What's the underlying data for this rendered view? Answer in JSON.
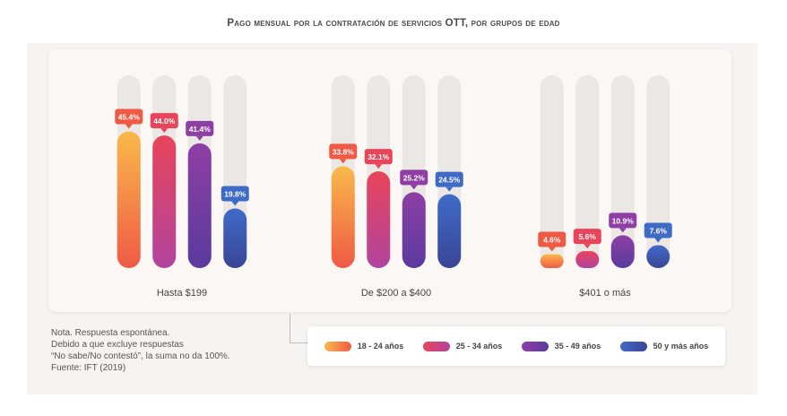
{
  "chart_data": {
    "type": "bar",
    "title": "Pago mensual por la contratación de servicios OTT, por grupos de edad",
    "categories": [
      "Hasta $199",
      "De $200 a $400",
      "$401 o más"
    ],
    "series": [
      {
        "name": "18 - 24 años",
        "values": [
          45.4,
          33.8,
          4.6
        ],
        "labels": [
          "45.4%",
          "33.8%",
          "4.6%"
        ],
        "color_top": "#f9b94a",
        "color_bottom": "#ef5a45"
      },
      {
        "name": "25 - 34 años",
        "values": [
          44.0,
          32.1,
          5.6
        ],
        "labels": [
          "44.0%",
          "32.1%",
          "5.6%"
        ],
        "color_top": "#e8445a",
        "color_bottom": "#b1449e"
      },
      {
        "name": "35 - 49 años",
        "values": [
          41.4,
          25.2,
          10.9
        ],
        "labels": [
          "41.4%",
          "25.2%",
          "10.9%"
        ],
        "color_top": "#8e3fa4",
        "color_bottom": "#5a3a9e"
      },
      {
        "name": "50 y más años",
        "values": [
          19.8,
          24.5,
          7.6
        ],
        "labels": [
          "19.8%",
          "24.5%",
          "7.6%"
        ],
        "color_top": "#3f6bc7",
        "color_bottom": "#3b4596"
      }
    ],
    "ylim": [
      0,
      100
    ],
    "xlabel": "",
    "ylabel": "",
    "legend_position": "bottom-right"
  },
  "note": {
    "lines": [
      "Nota. Respuesta espontánea.",
      "Debido a que excluye respuestas",
      "“No sabe/No contestó”, la suma no da 100%.",
      "Fuente: IFT (2019)"
    ]
  },
  "colors": {
    "track": "#ebe7e5",
    "label_text": "#ffffff"
  }
}
